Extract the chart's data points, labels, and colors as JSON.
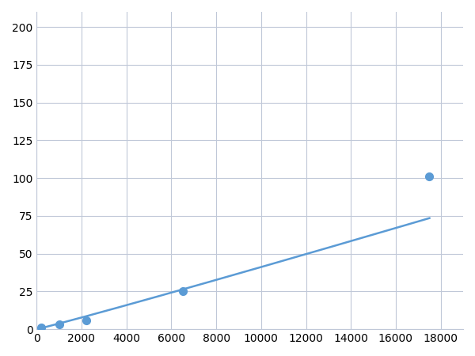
{
  "x_data": [
    200,
    500,
    1000,
    2200,
    6500,
    17500
  ],
  "y_data": [
    1.0,
    1.8,
    3.0,
    6.0,
    25.0,
    101.0
  ],
  "marked_x": [
    200,
    1000,
    2200,
    6500,
    17500
  ],
  "marked_y": [
    1.0,
    3.0,
    6.0,
    25.0,
    101.0
  ],
  "line_color": "#5b9bd5",
  "marker_color": "#5b9bd5",
  "marker_size": 7,
  "line_width": 1.8,
  "xlim": [
    0,
    19000
  ],
  "ylim": [
    0,
    210
  ],
  "xticks": [
    0,
    2000,
    4000,
    6000,
    8000,
    10000,
    12000,
    14000,
    16000,
    18000
  ],
  "yticks": [
    0,
    25,
    50,
    75,
    100,
    125,
    150,
    175,
    200
  ],
  "grid_color": "#c0c8d8",
  "background_color": "#ffffff",
  "tick_label_fontsize": 10
}
